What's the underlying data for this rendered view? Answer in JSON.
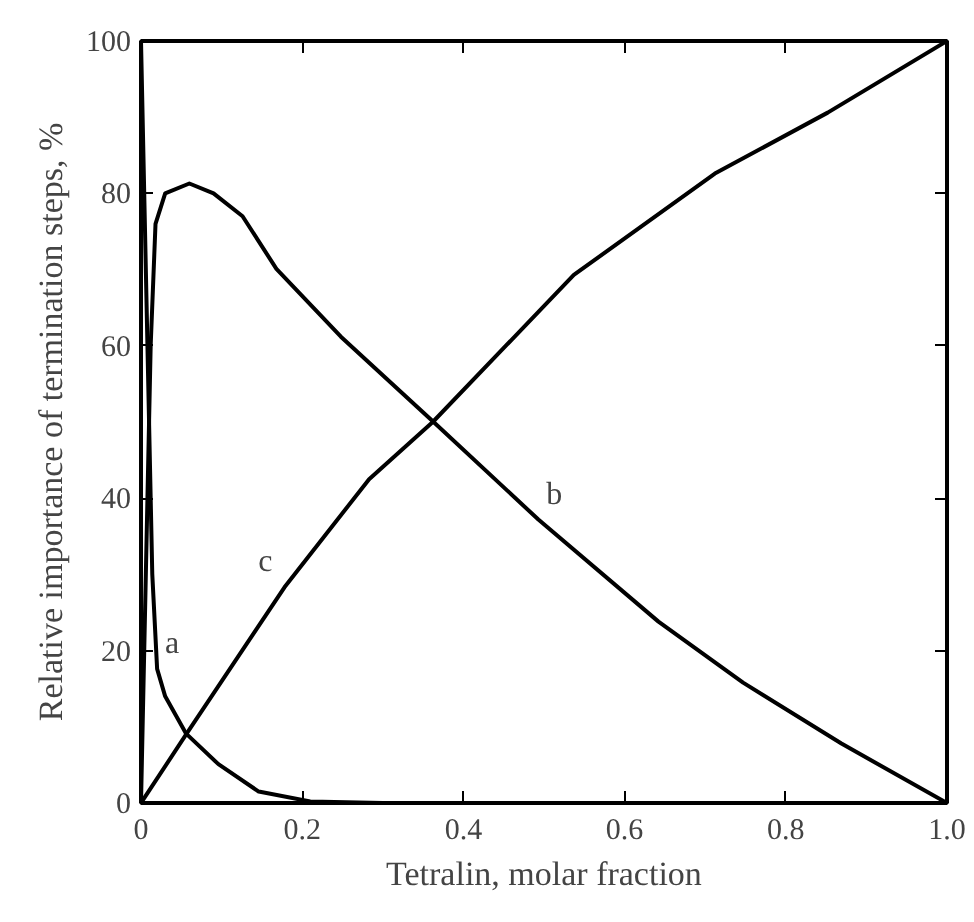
{
  "chart_data": {
    "type": "line",
    "xlabel": "Tetralin, molar fraction",
    "ylabel": "Relative importance of termination steps, %",
    "xlim": [
      0,
      1.0
    ],
    "ylim": [
      0,
      100
    ],
    "xticks": [
      0,
      0.2,
      0.4,
      0.6,
      0.8,
      "1.0"
    ],
    "yticks": [
      0,
      20,
      40,
      60,
      80,
      100
    ],
    "grid": false,
    "line_style": "solid",
    "series": [
      {
        "color": "#000000",
        "x": [
          0,
          0.008,
          0.014,
          0.02,
          0.03,
          0.056,
          0.096,
          0.146,
          0.21,
          0.3,
          0.5,
          0.8,
          1.0
        ],
        "values": [
          100,
          60,
          30,
          17.6,
          14,
          9.1,
          5.1,
          1.5,
          0.2,
          0,
          0,
          0,
          0
        ]
      },
      {
        "color": "#000000",
        "x": [
          0,
          0.008,
          0.012,
          0.018,
          0.03,
          0.06,
          0.09,
          0.126,
          0.168,
          0.248,
          0.362,
          0.493,
          0.642,
          0.747,
          0.869,
          1.0
        ],
        "values": [
          0,
          40,
          60,
          76,
          80,
          81.3,
          80,
          77,
          70.1,
          61.2,
          50.1,
          37.2,
          23.8,
          15.8,
          7.8,
          0
        ]
      },
      {
        "color": "#000000",
        "x": [
          0,
          0.056,
          0.178,
          0.283,
          0.362,
          0.537,
          0.712,
          0.852,
          1.0
        ],
        "values": [
          0,
          9,
          28.3,
          42.5,
          50,
          69.3,
          82.6,
          90.6,
          100
        ]
      }
    ],
    "annotations": [
      {
        "text": "a",
        "x": 0.02,
        "y": 17.6
      },
      {
        "text": "c",
        "x": 0.178,
        "y": 28.3
      },
      {
        "text": "b",
        "x": 0.493,
        "y": 37.2
      }
    ]
  }
}
